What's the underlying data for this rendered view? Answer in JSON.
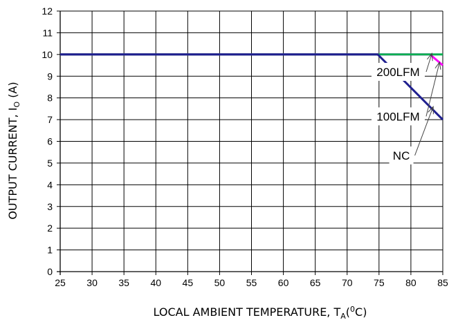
{
  "chart_data": {
    "type": "line",
    "xlabel": {
      "main": "LOCAL AMBIENT TEMPERATURE, T",
      "sub": "A",
      "open": "(",
      "sup": "0",
      "close": "C)"
    },
    "ylabel": {
      "main": "OUTPUT CURRENT, I",
      "sub": "O",
      "close": " (A)"
    },
    "xlim": [
      25,
      85
    ],
    "ylim": [
      0,
      12
    ],
    "xticks": [
      25,
      30,
      35,
      40,
      45,
      50,
      55,
      60,
      65,
      70,
      75,
      80,
      85
    ],
    "yticks": [
      0,
      1,
      2,
      3,
      4,
      5,
      6,
      7,
      8,
      9,
      10,
      11,
      12
    ],
    "grid": true,
    "series": [
      {
        "name": "200LFM",
        "color": "#ff00ff",
        "points": [
          [
            25,
            10
          ],
          [
            83,
            10
          ],
          [
            85,
            9.5
          ]
        ]
      },
      {
        "name": "100LFM",
        "color": "#00b050",
        "points": [
          [
            25,
            10
          ],
          [
            85,
            10
          ]
        ]
      },
      {
        "name": "NC",
        "color": "#1f1f8f",
        "points": [
          [
            25,
            10
          ],
          [
            74.8,
            10
          ],
          [
            85,
            7
          ]
        ]
      }
    ],
    "annotations": [
      {
        "text": "200LFM",
        "x": 78,
        "y": 9.2,
        "arrow_to": [
          83.3,
          10.05
        ]
      },
      {
        "text": "100LFM",
        "x": 78,
        "y": 7.15,
        "arrow_to": [
          84.5,
          9.65
        ]
      },
      {
        "text": "NC",
        "x": 78.5,
        "y": 5.35,
        "arrow_to": [
          83.5,
          7.6
        ]
      }
    ]
  }
}
